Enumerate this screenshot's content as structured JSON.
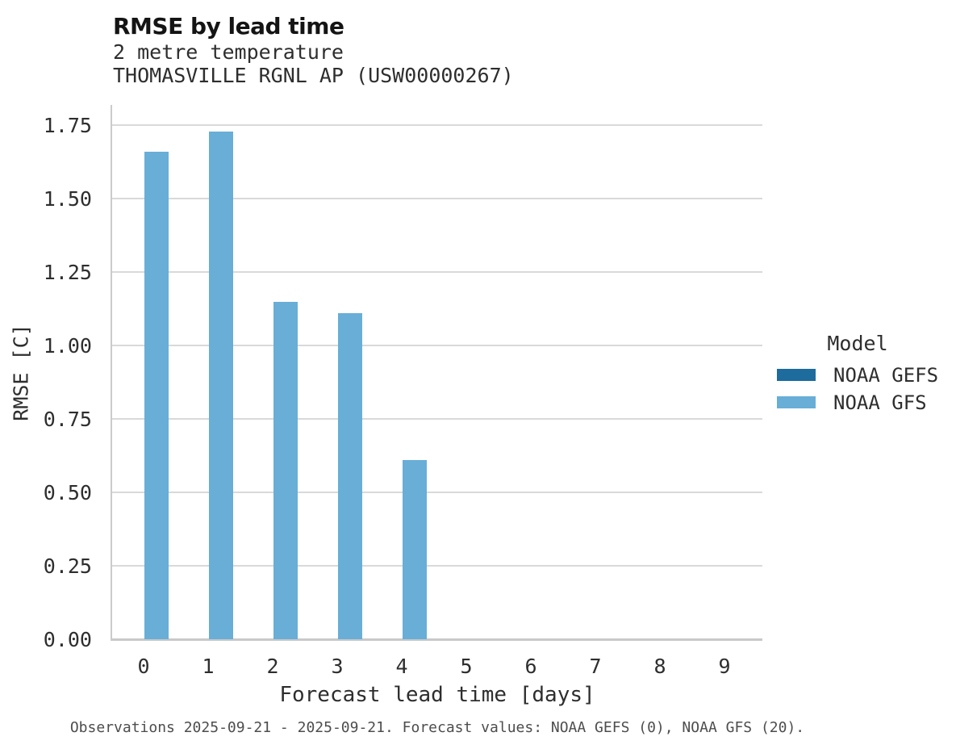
{
  "chart_data": {
    "type": "bar",
    "title": "RMSE by lead time",
    "subtitle": [
      "2 metre temperature",
      "THOMASVILLE RGNL AP (USW00000267)"
    ],
    "categories": [
      "0",
      "1",
      "2",
      "3",
      "4",
      "5",
      "6",
      "7",
      "8",
      "9"
    ],
    "series": [
      {
        "name": "NOAA GEFS",
        "color": "#1e6b9e",
        "values": [
          null,
          null,
          null,
          null,
          null,
          null,
          null,
          null,
          null,
          null
        ]
      },
      {
        "name": "NOAA GFS",
        "color": "#68aed7",
        "values": [
          1.66,
          1.73,
          1.15,
          1.11,
          0.61,
          null,
          null,
          null,
          null,
          null
        ]
      }
    ],
    "xlabel": "Forecast lead time [days]",
    "ylabel": "RMSE [C]",
    "ytick_labels": [
      "0.00",
      "0.25",
      "0.50",
      "0.75",
      "1.00",
      "1.25",
      "1.50",
      "1.75"
    ],
    "ylim": [
      0,
      1.82
    ],
    "grid": "horizontal",
    "legend": {
      "title": "Model",
      "position": "right-center"
    },
    "footnote": "Observations 2025-09-21 - 2025-09-21. Forecast values: NOAA GEFS (0), NOAA GFS (20)."
  },
  "colors": {
    "gridline": "#d9d9d9",
    "axis_spine": "#cbcbcb",
    "baseline": "#c9c9c9",
    "title_text": "#141414",
    "axis_text": "#2e2e2e",
    "footnote_text": "#4d4d4d",
    "background": "#ffffff"
  }
}
